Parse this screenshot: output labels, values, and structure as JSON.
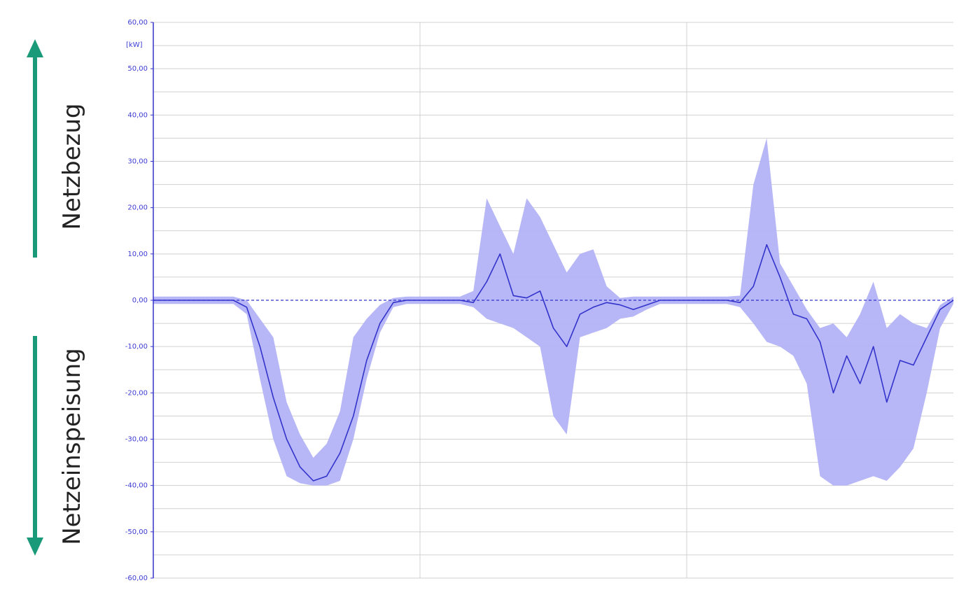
{
  "annotations": {
    "up_label": "Netzbezug",
    "down_label": "Netzeinspeisung",
    "arrow_color": "#1a9a78"
  },
  "chart_data": {
    "type": "area",
    "title": "",
    "xlabel": "",
    "ylabel": "",
    "unit_label": "[kW]",
    "ylim": [
      -60,
      60
    ],
    "y_ticks": [
      60,
      50,
      40,
      30,
      20,
      10,
      0,
      -10,
      -20,
      -30,
      -40,
      -50,
      -60
    ],
    "y_tick_labels": [
      "60,00",
      "50,00",
      "40,00",
      "30,00",
      "20,00",
      "10,00",
      "0,00",
      "-10,00",
      "-20,00",
      "-30,00",
      "-40,00",
      "-50,00",
      "-60,00"
    ],
    "grid": true,
    "colors": {
      "line": "#3333cc",
      "band": "#b3b3f7",
      "axis": "#3333cc",
      "grid": "#d0d0d0"
    },
    "x": [
      0,
      0.1,
      0.2,
      0.3,
      0.35,
      0.4,
      0.45,
      0.5,
      0.55,
      0.6,
      0.65,
      0.7,
      0.75,
      0.8,
      0.85,
      0.9,
      0.95,
      1.0,
      1.05,
      1.1,
      1.15,
      1.2,
      1.25,
      1.3,
      1.35,
      1.4,
      1.45,
      1.5,
      1.55,
      1.6,
      1.65,
      1.7,
      1.75,
      1.8,
      1.85,
      1.9,
      1.95,
      2.0,
      2.05,
      2.1,
      2.15,
      2.2,
      2.25,
      2.3,
      2.35,
      2.4,
      2.45,
      2.5,
      2.55,
      2.6,
      2.65,
      2.7,
      2.75,
      2.8,
      2.85,
      2.9,
      2.95,
      3.0
    ],
    "series": [
      {
        "values": [
          0,
          0,
          0,
          0,
          -1.5,
          -10,
          -21,
          -30,
          -36,
          -39,
          -38,
          -33,
          -25,
          -13,
          -5,
          -0.5,
          0,
          0,
          0,
          0,
          0,
          -0.5,
          4,
          10,
          1,
          0.5,
          2,
          -6,
          -10,
          -3,
          -1.5,
          -0.5,
          -1,
          -2,
          -1,
          0,
          0,
          0,
          0,
          0,
          0,
          -0.5,
          3,
          12,
          5,
          -3,
          -4,
          -9,
          -20,
          -12,
          -18,
          -10,
          -22,
          -13,
          -14,
          -8,
          -2,
          0
        ]
      },
      {
        "values": [
          0.8,
          0.8,
          0.8,
          0.8,
          0,
          -4,
          -8,
          -22,
          -29,
          -34,
          -31,
          -24,
          -8,
          -4,
          -1,
          0.5,
          0.8,
          0.8,
          0.8,
          0.8,
          0.8,
          2,
          22,
          16,
          10,
          22,
          18,
          12,
          6,
          10,
          11,
          3,
          0.5,
          0.8,
          0.8,
          0.8,
          0.8,
          0.8,
          0.8,
          0.8,
          0.8,
          1,
          25,
          35,
          8,
          3,
          -2,
          -6,
          -5,
          -8,
          -3,
          4,
          -6,
          -3,
          -5,
          -6,
          -1,
          0.8
        ]
      },
      {
        "values": [
          -0.8,
          -0.8,
          -0.8,
          -0.8,
          -3,
          -17,
          -30,
          -38,
          -39.5,
          -40,
          -40,
          -39,
          -30,
          -17,
          -7,
          -1.5,
          -0.8,
          -0.8,
          -0.8,
          -0.8,
          -0.8,
          -1.5,
          -4,
          -5,
          -6,
          -8,
          -10,
          -25,
          -29,
          -8,
          -7,
          -6,
          -4,
          -3.5,
          -2,
          -0.8,
          -0.8,
          -0.8,
          -0.8,
          -0.8,
          -0.8,
          -1.5,
          -5,
          -9,
          -10,
          -12,
          -18,
          -38,
          -40,
          -40,
          -39,
          -38,
          -39,
          -36,
          -32,
          -20,
          -6,
          -0.8
        ]
      }
    ]
  }
}
